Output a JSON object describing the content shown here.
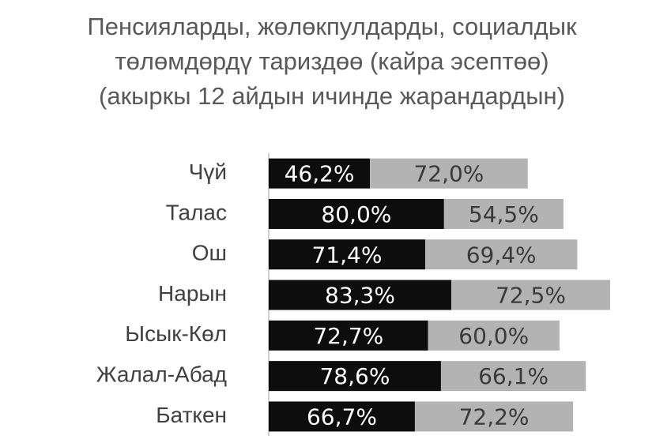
{
  "chart_data": {
    "type": "stacked-bar-horizontal",
    "title": [
      "Пенсияларды, жөлөкпулдарды, социалдык",
      "төлөмдөрдү тариздөө (кайра эсептөө)",
      "(акыркы 12 айдын ичинде жарандардын)"
    ],
    "categories": [
      "Чүй",
      "Талас",
      "Ош",
      "Нарын",
      "Ысык-Көл",
      "Жалал-Абад",
      "Баткен"
    ],
    "series": [
      {
        "color": "#0d0d0d",
        "label_color": "#ffffff",
        "values": [
          46.2,
          80.0,
          71.4,
          83.3,
          72.7,
          78.6,
          66.7
        ],
        "value_labels": [
          "46,2%",
          "80,0%",
          "71,4%",
          "83,3%",
          "72,7%",
          "78,6%",
          "66,7%"
        ]
      },
      {
        "color": "#b3b3b3",
        "label_color": "#3a3a3a",
        "values": [
          72.0,
          54.5,
          69.4,
          72.5,
          60.0,
          66.1,
          72.2
        ],
        "value_labels": [
          "72,0%",
          "54,5%",
          "69,4%",
          "72,5%",
          "60,0%",
          "66,1%",
          "72,2%"
        ]
      }
    ]
  }
}
